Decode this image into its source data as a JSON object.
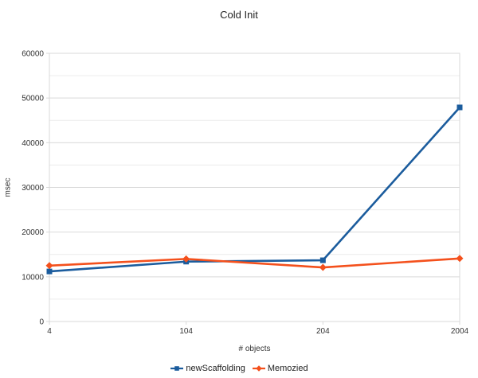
{
  "chart_data": {
    "type": "line",
    "title": "Cold Init",
    "xlabel": "# objects",
    "ylabel": "msec",
    "categories": [
      "4",
      "104",
      "204",
      "2004"
    ],
    "series": [
      {
        "name": "newScaffolding",
        "color": "#1b5c9d",
        "marker": "square",
        "values": [
          11200,
          13400,
          13700,
          47900
        ]
      },
      {
        "name": "Memozied",
        "color": "#f4501c",
        "marker": "diamond",
        "values": [
          12500,
          14000,
          12100,
          14100
        ]
      }
    ],
    "ylim": [
      0,
      60000
    ],
    "ytick_step": 10000,
    "yminor_step": 5000,
    "grid": true,
    "legend_position": "bottom",
    "colors": {
      "grid_major": "#d9d9d9",
      "grid_minor": "#ececec",
      "plot_border": "#d9d9d9",
      "labels": "#333333"
    }
  }
}
